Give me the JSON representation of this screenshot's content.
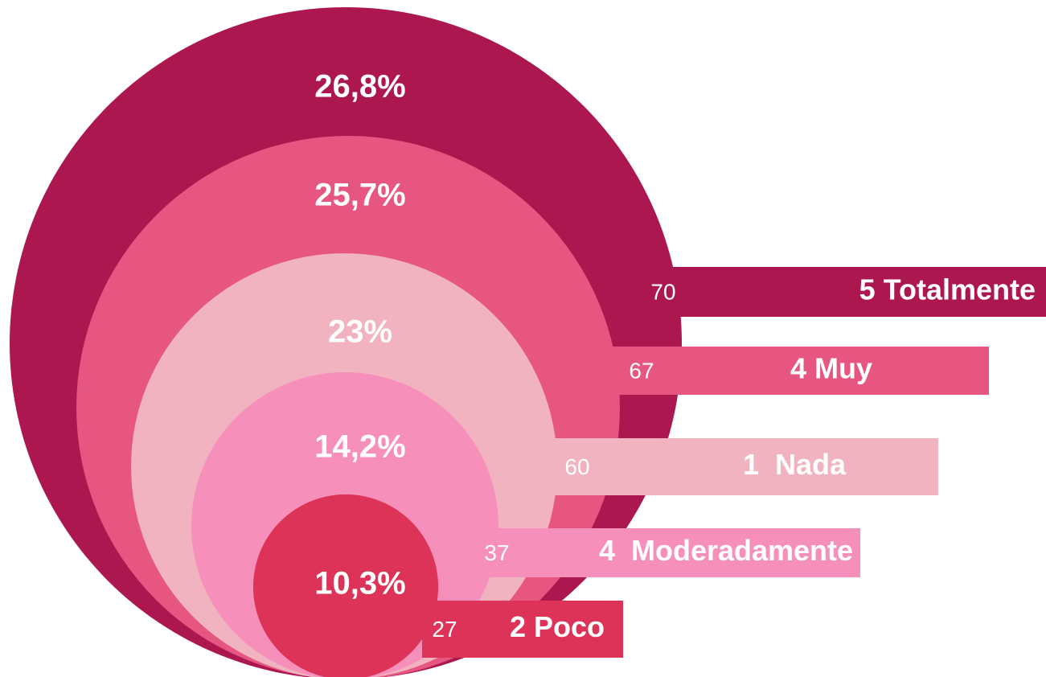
{
  "chart_data": {
    "type": "nested",
    "categories": [
      "5 Totalmente",
      "4 Muy",
      "1  Nada",
      "4  Moderadamente",
      "2 Poco"
    ],
    "values": [
      26.8,
      25.7,
      23,
      14.2,
      10.3
    ],
    "value_labels": [
      "26,8%",
      "25,7%",
      "23%",
      "14,2%",
      "10,3%"
    ],
    "counts": [
      70,
      67,
      60,
      37,
      27
    ],
    "colors": [
      "#ad1750",
      "#e65680",
      "#f1b3c0",
      "#f68fb9",
      "#de3358"
    ]
  }
}
